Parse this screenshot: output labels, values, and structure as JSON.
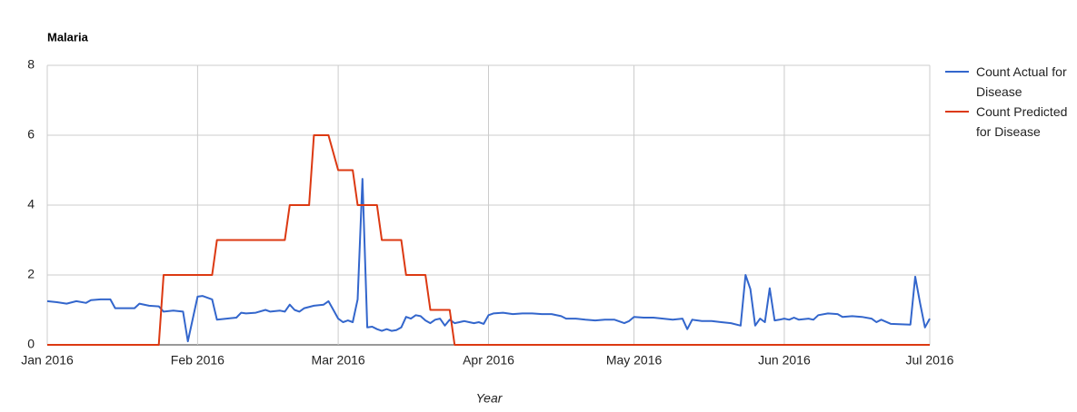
{
  "chart_data": {
    "type": "line",
    "title": "Malaria",
    "x_label": "Year",
    "xlim": [
      0,
      182
    ],
    "xticks": [
      {
        "value": 0,
        "label": "Jan 2016"
      },
      {
        "value": 31,
        "label": "Feb 2016"
      },
      {
        "value": 60,
        "label": "Mar 2016"
      },
      {
        "value": 91,
        "label": "Apr 2016"
      },
      {
        "value": 121,
        "label": "May 2016"
      },
      {
        "value": 152,
        "label": "Jun 2016"
      },
      {
        "value": 182,
        "label": "Jul 2016"
      }
    ],
    "ylim": [
      0,
      8
    ],
    "yticks": [
      0,
      2,
      4,
      6,
      8
    ],
    "grid": true,
    "legend": "right",
    "series": [
      {
        "name": "Count Actual for Disease",
        "color": "#3366cc",
        "x": [
          0,
          2,
          4,
          6,
          8,
          9,
          11,
          13,
          14,
          16,
          18,
          19,
          21,
          23,
          24,
          26,
          28,
          29,
          31,
          32,
          34,
          35,
          37,
          39,
          40,
          41,
          43,
          45,
          46,
          48,
          49,
          50,
          51,
          52,
          53,
          55,
          57,
          58,
          59,
          60,
          61,
          62,
          63,
          64,
          65,
          66,
          67,
          68,
          69,
          70,
          71,
          72,
          73,
          74,
          75,
          76,
          77,
          78,
          79,
          80,
          81,
          82,
          83,
          84,
          85,
          86,
          87,
          88,
          89,
          90,
          91,
          92,
          94,
          96,
          98,
          100,
          102,
          104,
          106,
          107,
          109,
          111,
          113,
          115,
          117,
          119,
          120,
          121,
          123,
          125,
          127,
          129,
          131,
          132,
          133,
          135,
          137,
          139,
          141,
          143,
          144,
          145,
          146,
          147,
          148,
          149,
          150,
          151,
          152,
          153,
          154,
          155,
          157,
          158,
          159,
          161,
          163,
          164,
          166,
          168,
          170,
          171,
          172,
          174,
          178,
          179,
          180,
          181,
          182
        ],
        "values": [
          1.25,
          1.22,
          1.18,
          1.25,
          1.2,
          1.28,
          1.3,
          1.3,
          1.05,
          1.05,
          1.05,
          1.18,
          1.12,
          1.1,
          0.95,
          0.98,
          0.95,
          0.1,
          1.38,
          1.4,
          1.3,
          0.72,
          0.75,
          0.78,
          0.92,
          0.9,
          0.92,
          1.0,
          0.95,
          0.98,
          0.95,
          1.15,
          1.0,
          0.95,
          1.05,
          1.12,
          1.15,
          1.25,
          1.0,
          0.75,
          0.65,
          0.7,
          0.65,
          1.3,
          4.75,
          0.5,
          0.52,
          0.45,
          0.4,
          0.45,
          0.4,
          0.42,
          0.5,
          0.8,
          0.75,
          0.85,
          0.82,
          0.7,
          0.62,
          0.72,
          0.75,
          0.55,
          0.72,
          0.62,
          0.65,
          0.68,
          0.65,
          0.62,
          0.65,
          0.6,
          0.85,
          0.9,
          0.92,
          0.88,
          0.9,
          0.9,
          0.88,
          0.88,
          0.82,
          0.75,
          0.75,
          0.72,
          0.7,
          0.72,
          0.72,
          0.62,
          0.68,
          0.8,
          0.78,
          0.78,
          0.75,
          0.72,
          0.75,
          0.45,
          0.72,
          0.68,
          0.68,
          0.65,
          0.62,
          0.55,
          2.0,
          1.6,
          0.55,
          0.75,
          0.65,
          1.62,
          0.7,
          0.72,
          0.75,
          0.72,
          0.78,
          0.72,
          0.75,
          0.72,
          0.85,
          0.9,
          0.88,
          0.8,
          0.82,
          0.8,
          0.75,
          0.65,
          0.72,
          0.6,
          0.58,
          1.95,
          1.2,
          0.5,
          0.75
        ]
      },
      {
        "name": "Count Predicted for Disease",
        "color": "#dc3912",
        "x": [
          0,
          23,
          24,
          34,
          35,
          49,
          50,
          54,
          55,
          58,
          60,
          63,
          64,
          68,
          69,
          73,
          74,
          78,
          79,
          83,
          84,
          182
        ],
        "values": [
          0,
          0,
          2,
          2,
          3,
          3,
          4,
          4,
          6,
          6,
          5,
          5,
          4,
          4,
          3,
          3,
          2,
          2,
          1,
          1,
          0,
          0
        ]
      }
    ]
  }
}
